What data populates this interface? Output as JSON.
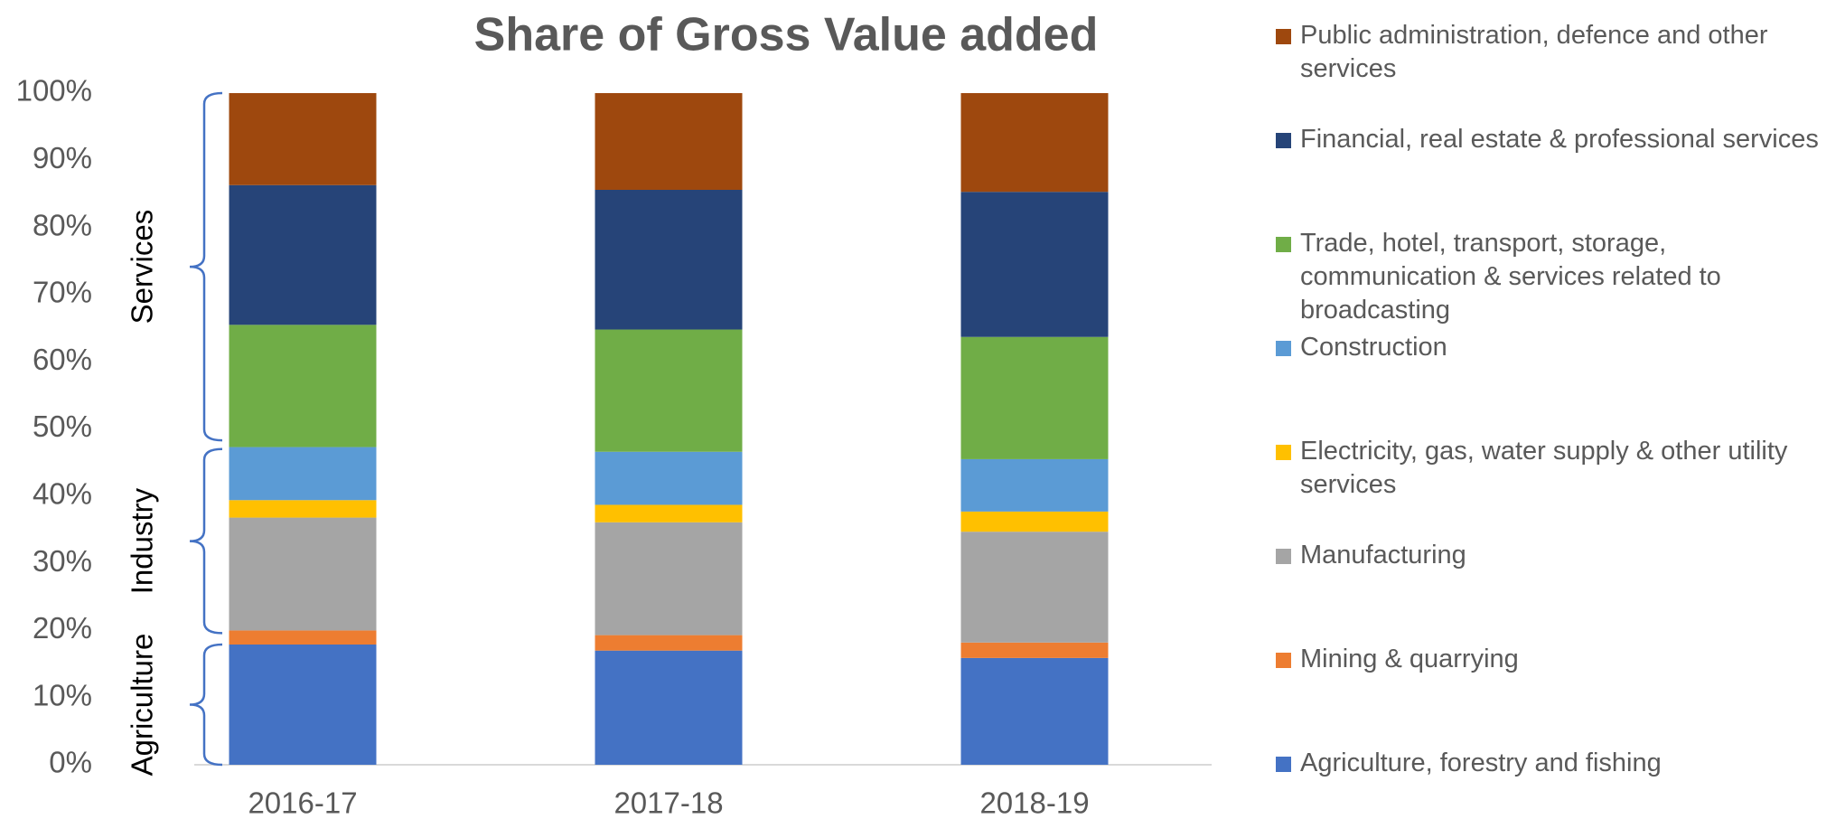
{
  "chart_data": {
    "type": "stacked_bar",
    "title": "Share of Gross Value added",
    "categories": [
      "2016-17",
      "2017-18",
      "2018-19"
    ],
    "series": [
      {
        "name": "Agriculture, forestry and fishing",
        "color": "#4472c4",
        "values": [
          17.9,
          17.0,
          15.9
        ]
      },
      {
        "name": "Mining & quarrying",
        "color": "#ed7d31",
        "values": [
          2.1,
          2.3,
          2.3
        ]
      },
      {
        "name": "Manufacturing",
        "color": "#a5a5a5",
        "values": [
          16.8,
          16.8,
          16.5
        ]
      },
      {
        "name": "Electricity, gas, water supply & other utility services",
        "color": "#ffc000",
        "values": [
          2.6,
          2.6,
          3.0
        ]
      },
      {
        "name": "Construction",
        "color": "#5b9bd5",
        "values": [
          7.9,
          7.9,
          7.8
        ]
      },
      {
        "name": "Trade, hotel, transport, storage, communication & services related to broadcasting",
        "color": "#70ad47",
        "values": [
          18.2,
          18.2,
          18.2
        ]
      },
      {
        "name": "Financial, real estate & professional services",
        "color": "#264478",
        "values": [
          20.8,
          20.8,
          21.6
        ]
      },
      {
        "name": "Public administration, defence and other services",
        "color": "#9e480e",
        "values": [
          13.7,
          14.4,
          14.7
        ]
      }
    ],
    "ylim": [
      0,
      100
    ],
    "yticks": [
      {
        "value": 0,
        "label": "0%"
      },
      {
        "value": 10,
        "label": "10%"
      },
      {
        "value": 20,
        "label": "20%"
      },
      {
        "value": 30,
        "label": "30%"
      },
      {
        "value": 40,
        "label": "40%"
      },
      {
        "value": 50,
        "label": "50%"
      },
      {
        "value": 60,
        "label": "60%"
      },
      {
        "value": 70,
        "label": "70%"
      },
      {
        "value": 80,
        "label": "80%"
      },
      {
        "value": 90,
        "label": "90%"
      },
      {
        "value": 100,
        "label": "100%"
      }
    ],
    "groups": [
      {
        "label": "Services",
        "range": [
          48.3,
          100
        ]
      },
      {
        "label": "Industry",
        "range": [
          19.6,
          47.0
        ]
      },
      {
        "label": "Agriculture",
        "range": [
          0,
          17.9
        ]
      }
    ],
    "legend": "right"
  }
}
